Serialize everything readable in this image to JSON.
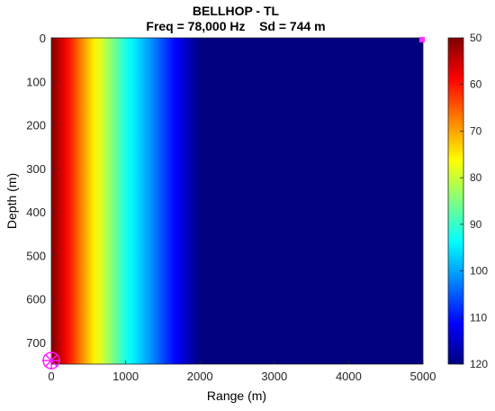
{
  "chart_data": {
    "type": "heatmap",
    "title": "BELLHOP - TL",
    "subtitle": "Freq = 78,000 Hz    Sd = 744 m",
    "xlabel": "Range (m)",
    "ylabel": "Depth (m)",
    "xlim": [
      0,
      5000
    ],
    "ylim": [
      0,
      750
    ],
    "y_reversed": true,
    "x_ticks": [
      0,
      1000,
      2000,
      3000,
      4000,
      5000
    ],
    "y_ticks": [
      0,
      100,
      200,
      300,
      400,
      500,
      600,
      700
    ],
    "colorbar": {
      "colormap": "jet",
      "reversed": true,
      "clim": [
        50,
        120
      ],
      "ticks": [
        50,
        60,
        70,
        80,
        90,
        100,
        110,
        120
      ]
    },
    "tl_vs_range": [
      {
        "range": 0,
        "tl": 50
      },
      {
        "range": 200,
        "tl": 58
      },
      {
        "range": 450,
        "tl": 70
      },
      {
        "range": 700,
        "tl": 80
      },
      {
        "range": 1000,
        "tl": 92
      },
      {
        "range": 1300,
        "tl": 100
      },
      {
        "range": 1700,
        "tl": 112
      },
      {
        "range": 2000,
        "tl": 120
      },
      {
        "range": 5000,
        "tl": 120
      }
    ],
    "source": {
      "range": 0,
      "depth": 744
    },
    "receiver": {
      "range": 5000,
      "depth": 0
    }
  }
}
